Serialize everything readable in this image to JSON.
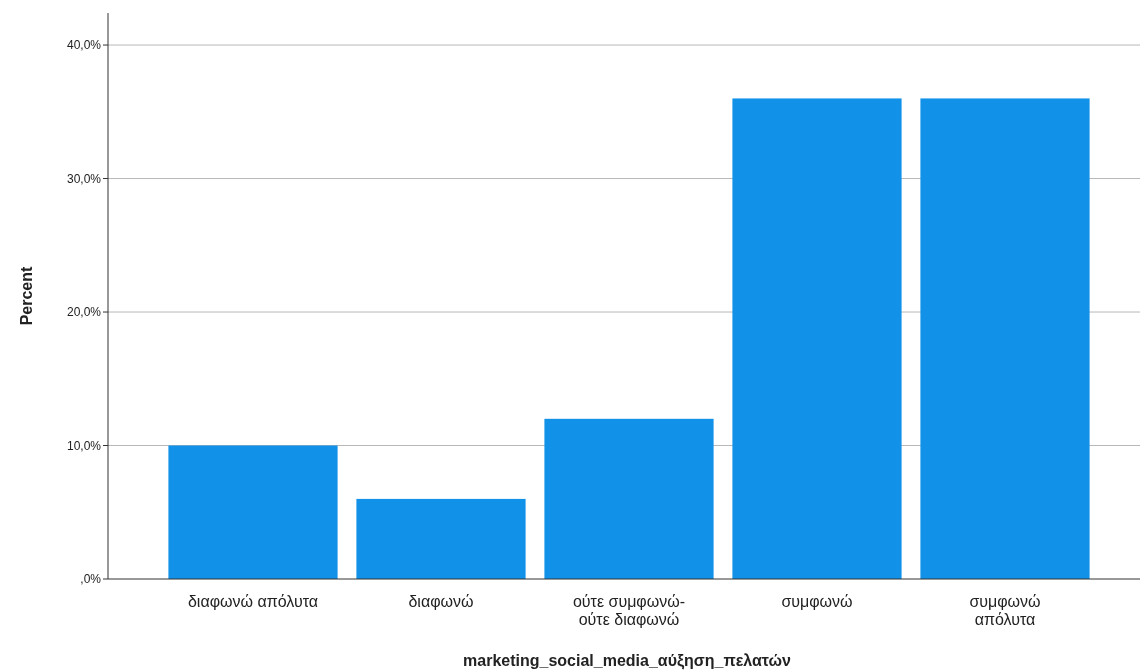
{
  "chart_data": {
    "type": "bar",
    "xlabel": "marketing_social_media_αύξηση_πελατών",
    "ylabel": "Percent",
    "categories": [
      "διαφωνώ απόλυτα",
      "διαφωνώ",
      "ούτε συμφωνώ-\nούτε διαφωνώ",
      "συμφωνώ",
      "συμφωνώ\nαπόλυτα"
    ],
    "values": [
      10,
      6,
      12,
      36,
      36
    ],
    "color": "#1192e8",
    "ylim": [
      0,
      42.4
    ],
    "yticks": [
      {
        "value": 0,
        "label": ",0%"
      },
      {
        "value": 10,
        "label": "10,0%"
      },
      {
        "value": 20,
        "label": "20,0%"
      },
      {
        "value": 30,
        "label": "30,0%"
      },
      {
        "value": 40,
        "label": "40,0%"
      }
    ],
    "grid": "y"
  }
}
